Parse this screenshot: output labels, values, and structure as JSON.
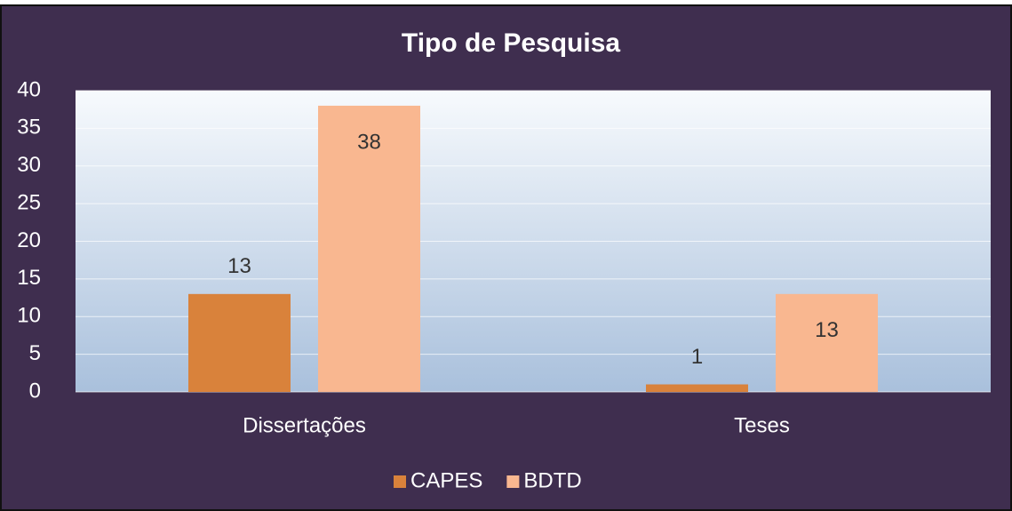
{
  "chart_data": {
    "type": "bar",
    "title": "Tipo de Pesquisa",
    "categories": [
      "Dissertações",
      "Teses"
    ],
    "series": [
      {
        "name": "CAPES",
        "color": "#d9823b",
        "values": [
          13,
          1
        ]
      },
      {
        "name": "BDTD",
        "color": "#f9b790",
        "values": [
          38,
          13
        ]
      }
    ],
    "ylim": [
      0,
      40
    ],
    "yticks": [
      0,
      5,
      10,
      15,
      20,
      25,
      30,
      35,
      40
    ],
    "grid": true,
    "legend": "bottom"
  }
}
